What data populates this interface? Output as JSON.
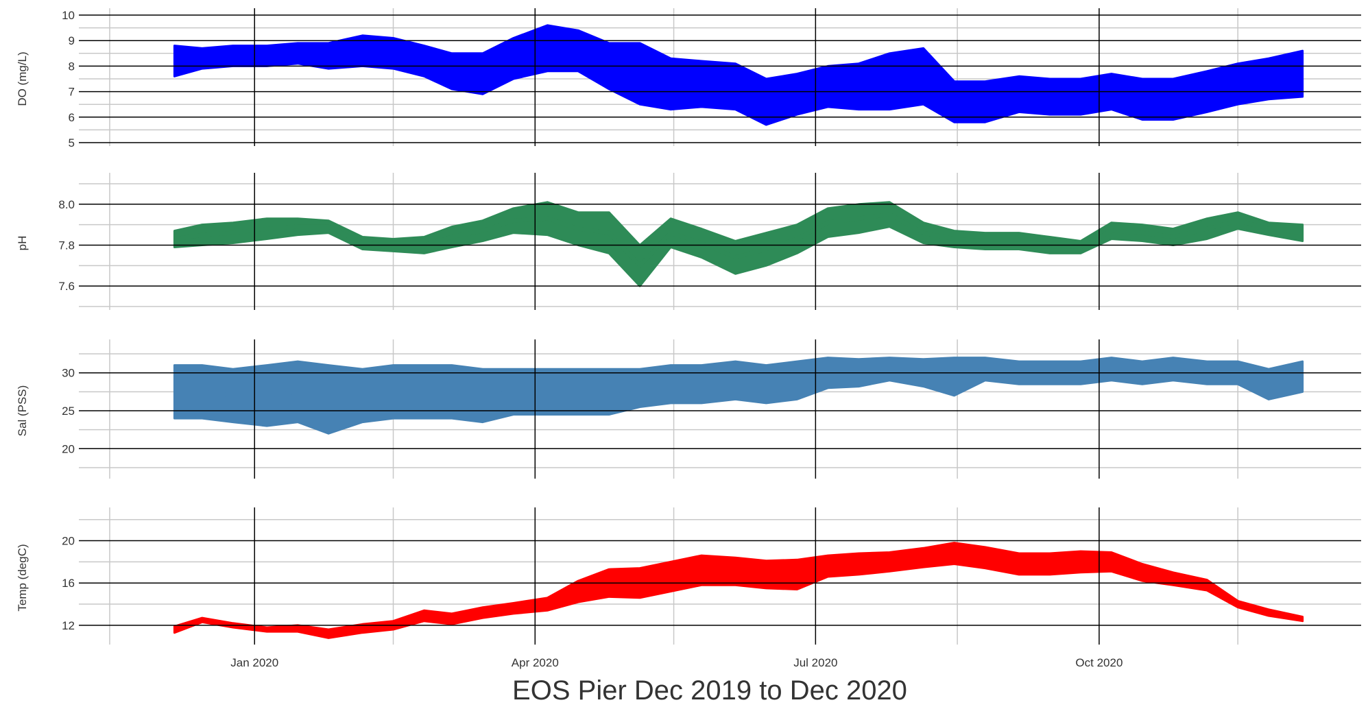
{
  "figure": {
    "caption": "EOS Pier Dec 2019 to Dec 2020",
    "x_tick_labels": [
      "Jan 2020",
      "Apr 2020",
      "Jul 2020",
      "Oct 2020"
    ]
  },
  "chart_data": [
    {
      "type": "line",
      "ylabel": "DO (mg/L)",
      "color": "#0000ff",
      "xlim": [
        "2019-11-05",
        "2020-12-25"
      ],
      "ylim": [
        5,
        10
      ],
      "yticks": [
        5,
        6,
        7,
        8,
        9,
        10
      ],
      "ytick_labels": [
        "5",
        "6",
        "7",
        "8",
        "9",
        "10"
      ],
      "series": [
        {
          "x": [
            "2019-12-06",
            "2019-12-15",
            "2019-12-25",
            "2020-01-05",
            "2020-01-15",
            "2020-01-25",
            "2020-02-05",
            "2020-02-15",
            "2020-02-25",
            "2020-03-05",
            "2020-03-15",
            "2020-03-25",
            "2020-04-05",
            "2020-04-15",
            "2020-04-25",
            "2020-05-05",
            "2020-05-15",
            "2020-05-25",
            "2020-06-05",
            "2020-06-15",
            "2020-06-25",
            "2020-07-05",
            "2020-07-15",
            "2020-07-25",
            "2020-08-05",
            "2020-08-15",
            "2020-08-25",
            "2020-09-05",
            "2020-09-15",
            "2020-09-25",
            "2020-10-05",
            "2020-10-15",
            "2020-10-25",
            "2020-11-05",
            "2020-11-15",
            "2020-11-25",
            "2020-12-06"
          ],
          "y": [
            8.2,
            8.3,
            8.4,
            8.4,
            8.5,
            8.4,
            8.6,
            8.5,
            8.2,
            7.8,
            7.7,
            8.3,
            8.7,
            8.6,
            8.0,
            7.7,
            7.3,
            7.3,
            7.2,
            6.6,
            6.9,
            7.2,
            7.2,
            7.4,
            7.6,
            6.6,
            6.6,
            6.9,
            6.8,
            6.8,
            7.0,
            6.7,
            6.7,
            7.0,
            7.3,
            7.5,
            7.7
          ],
          "band": [
            0.6,
            0.4,
            0.4,
            0.4,
            0.4,
            0.5,
            0.6,
            0.6,
            0.6,
            0.7,
            0.8,
            0.8,
            0.9,
            0.8,
            0.9,
            1.2,
            1.0,
            0.9,
            0.9,
            0.9,
            0.8,
            0.8,
            0.9,
            1.1,
            1.1,
            0.8,
            0.8,
            0.7,
            0.7,
            0.7,
            0.7,
            0.8,
            0.8,
            0.8,
            0.8,
            0.8,
            0.9
          ]
        }
      ]
    },
    {
      "type": "line",
      "ylabel": "pH",
      "color": "#2e8b57",
      "xlim": [
        "2019-11-05",
        "2020-12-25"
      ],
      "ylim": [
        7.5,
        8.12
      ],
      "yticks": [
        7.6,
        7.8,
        8.0
      ],
      "ytick_labels": [
        "7.6",
        "7.8",
        "8.0"
      ],
      "series": [
        {
          "x": [
            "2019-12-06",
            "2019-12-15",
            "2019-12-25",
            "2020-01-05",
            "2020-01-15",
            "2020-01-25",
            "2020-02-05",
            "2020-02-15",
            "2020-02-25",
            "2020-03-05",
            "2020-03-15",
            "2020-03-25",
            "2020-04-05",
            "2020-04-15",
            "2020-04-25",
            "2020-05-05",
            "2020-05-15",
            "2020-05-25",
            "2020-06-05",
            "2020-06-15",
            "2020-06-25",
            "2020-07-05",
            "2020-07-15",
            "2020-07-25",
            "2020-08-05",
            "2020-08-15",
            "2020-08-25",
            "2020-09-05",
            "2020-09-15",
            "2020-09-25",
            "2020-10-05",
            "2020-10-15",
            "2020-10-25",
            "2020-11-05",
            "2020-11-15",
            "2020-11-25",
            "2020-12-06"
          ],
          "y": [
            7.83,
            7.85,
            7.86,
            7.88,
            7.89,
            7.89,
            7.81,
            7.8,
            7.8,
            7.84,
            7.87,
            7.92,
            7.93,
            7.88,
            7.86,
            7.7,
            7.86,
            7.81,
            7.74,
            7.78,
            7.83,
            7.91,
            7.93,
            7.95,
            7.86,
            7.83,
            7.82,
            7.82,
            7.8,
            7.79,
            7.87,
            7.86,
            7.84,
            7.88,
            7.92,
            7.88,
            7.86
          ],
          "band": [
            0.04,
            0.05,
            0.05,
            0.05,
            0.04,
            0.03,
            0.03,
            0.03,
            0.04,
            0.05,
            0.05,
            0.06,
            0.08,
            0.08,
            0.1,
            0.1,
            0.07,
            0.07,
            0.08,
            0.08,
            0.07,
            0.07,
            0.07,
            0.06,
            0.05,
            0.04,
            0.04,
            0.04,
            0.04,
            0.03,
            0.04,
            0.04,
            0.04,
            0.05,
            0.04,
            0.03,
            0.04
          ]
        }
      ]
    },
    {
      "type": "line",
      "ylabel": "Sal (PSS)",
      "color": "#4682b4",
      "xlim": [
        "2019-11-05",
        "2020-12-25"
      ],
      "ylim": [
        16.5,
        33.5
      ],
      "yticks": [
        20,
        25,
        30
      ],
      "ytick_labels": [
        "20",
        "25",
        "30"
      ],
      "series": [
        {
          "x": [
            "2019-12-06",
            "2019-12-15",
            "2019-12-25",
            "2020-01-05",
            "2020-01-15",
            "2020-01-25",
            "2020-02-05",
            "2020-02-15",
            "2020-02-25",
            "2020-03-05",
            "2020-03-15",
            "2020-03-25",
            "2020-04-05",
            "2020-04-15",
            "2020-04-25",
            "2020-05-05",
            "2020-05-15",
            "2020-05-25",
            "2020-06-05",
            "2020-06-15",
            "2020-06-25",
            "2020-07-05",
            "2020-07-15",
            "2020-07-25",
            "2020-08-05",
            "2020-08-15",
            "2020-08-25",
            "2020-09-05",
            "2020-09-15",
            "2020-09-25",
            "2020-10-05",
            "2020-10-15",
            "2020-10-25",
            "2020-11-05",
            "2020-11-15",
            "2020-11-25",
            "2020-12-06"
          ],
          "y": [
            27.5,
            27.5,
            27.0,
            27.0,
            27.5,
            26.5,
            27.0,
            27.5,
            27.5,
            27.5,
            27.0,
            27.5,
            27.5,
            27.5,
            27.5,
            28.0,
            28.5,
            28.5,
            29.0,
            28.5,
            29.0,
            30.0,
            30.0,
            30.5,
            30.0,
            29.5,
            30.5,
            30.0,
            30.0,
            30.0,
            30.5,
            30.0,
            30.5,
            30.0,
            30.0,
            28.5,
            29.5
          ],
          "band": [
            3.5,
            3.5,
            3.5,
            4.0,
            4.0,
            4.5,
            3.5,
            3.5,
            3.5,
            3.5,
            3.5,
            3.0,
            3.0,
            3.0,
            3.0,
            2.5,
            2.5,
            2.5,
            2.5,
            2.5,
            2.5,
            2.0,
            1.8,
            1.5,
            1.8,
            2.5,
            1.5,
            1.5,
            1.5,
            1.5,
            1.5,
            1.5,
            1.5,
            1.5,
            1.5,
            2.0,
            2.0
          ]
        }
      ]
    },
    {
      "type": "line",
      "ylabel": "Temp (degC)",
      "color": "#ff0000",
      "xlim": [
        "2019-11-05",
        "2020-12-25"
      ],
      "ylim": [
        10.5,
        22.5
      ],
      "yticks": [
        12,
        16,
        20
      ],
      "ytick_labels": [
        "12",
        "16",
        "20"
      ],
      "series": [
        {
          "x": [
            "2019-12-06",
            "2019-12-15",
            "2019-12-25",
            "2020-01-05",
            "2020-01-15",
            "2020-01-25",
            "2020-02-05",
            "2020-02-15",
            "2020-02-25",
            "2020-03-05",
            "2020-03-15",
            "2020-03-25",
            "2020-04-05",
            "2020-04-15",
            "2020-04-25",
            "2020-05-05",
            "2020-05-15",
            "2020-05-25",
            "2020-06-05",
            "2020-06-15",
            "2020-06-25",
            "2020-07-05",
            "2020-07-15",
            "2020-07-25",
            "2020-08-05",
            "2020-08-15",
            "2020-08-25",
            "2020-09-05",
            "2020-09-15",
            "2020-09-25",
            "2020-10-05",
            "2020-10-15",
            "2020-10-25",
            "2020-11-05",
            "2020-11-15",
            "2020-11-25",
            "2020-12-06"
          ],
          "y": [
            11.6,
            12.5,
            12.0,
            11.6,
            11.7,
            11.2,
            11.7,
            12.0,
            12.9,
            12.6,
            13.2,
            13.6,
            14.0,
            15.2,
            16.0,
            16.0,
            16.6,
            17.2,
            17.1,
            16.8,
            16.8,
            17.6,
            17.8,
            18.0,
            18.4,
            18.8,
            18.4,
            17.8,
            17.8,
            18.0,
            18.0,
            17.0,
            16.4,
            15.8,
            14.0,
            13.2,
            12.6
          ],
          "band": [
            0.3,
            0.2,
            0.2,
            0.2,
            0.3,
            0.4,
            0.4,
            0.4,
            0.5,
            0.5,
            0.5,
            0.5,
            0.6,
            1.0,
            1.3,
            1.4,
            1.4,
            1.4,
            1.3,
            1.3,
            1.4,
            1.0,
            1.0,
            0.9,
            0.9,
            1.0,
            1.0,
            1.0,
            1.0,
            1.0,
            0.9,
            0.8,
            0.6,
            0.5,
            0.3,
            0.3,
            0.2
          ]
        }
      ]
    }
  ]
}
